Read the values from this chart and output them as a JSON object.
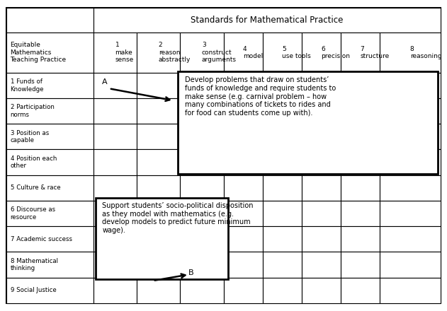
{
  "title": "Standards for Mathematical Practice",
  "col_headers": [
    "Equitable\nMathematics\nTeaching Practice",
    "1\nmake\nsense",
    "2\nreason\nabstractly",
    "3\nconstruct\narguments",
    "4\nmodel",
    "5\nuse tools",
    "6\nprecision",
    "7\nstructure",
    "8\nreasoning"
  ],
  "row_labels": [
    "1 Funds of\nKnowledge",
    "2 Participation\nnorms",
    "3 Position as\ncapable",
    "4 Position each\nother",
    "5 Culture & race",
    "6 Discourse as\nresource",
    "7 Academic success",
    "8 Mathematical\nthinking",
    "9 Social Justice"
  ],
  "annotation_A_text": "Develop problems that draw on students’\nfunds of knowledge and require students to\nmake sense (e.g. carnival problem – how\nmany combinations of tickets to rides and\nfor food can students come up with).",
  "annotation_B_text": "Support students’ socio-political disposition\nas they model with mathematics (e.g.\ndevelop models to predict future minimum\nwage).",
  "background_color": "#ffffff",
  "text_color": "#000000"
}
